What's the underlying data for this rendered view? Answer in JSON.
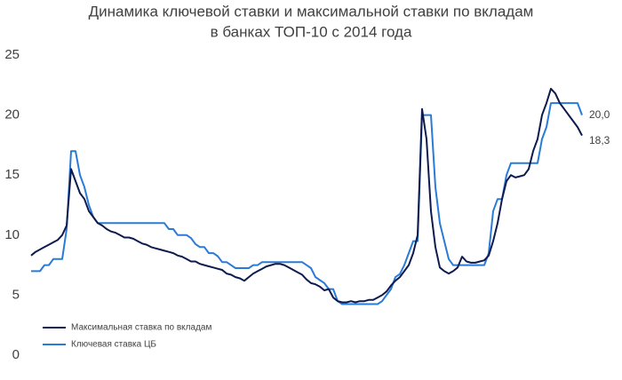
{
  "chart_data": {
    "type": "line",
    "title": [
      "Динамика ключевой ставки и максимальной ставки по вкладам",
      "в банках ТОП-10 с 2014 года"
    ],
    "ylim": [
      0,
      25
    ],
    "yticks": [
      0,
      5,
      10,
      15,
      20,
      25
    ],
    "grid": false,
    "legend": "lower left",
    "series": [
      {
        "name": "Максимальная ставка по вкладам",
        "color": "#0d1b4f",
        "end_label": "18,3",
        "values": [
          8.3,
          8.6,
          8.8,
          9,
          9.2,
          9.4,
          9.6,
          10,
          10.8,
          15.5,
          14.5,
          13.5,
          13,
          12,
          11.5,
          11,
          10.8,
          10.5,
          10.3,
          10.2,
          10,
          9.8,
          9.8,
          9.7,
          9.5,
          9.3,
          9.2,
          9,
          8.9,
          8.8,
          8.7,
          8.6,
          8.5,
          8.3,
          8.2,
          8,
          7.8,
          7.8,
          7.6,
          7.5,
          7.4,
          7.3,
          7.2,
          7.1,
          6.8,
          6.7,
          6.5,
          6.4,
          6.2,
          6.5,
          6.8,
          7,
          7.2,
          7.4,
          7.5,
          7.6,
          7.6,
          7.5,
          7.3,
          7.1,
          6.9,
          6.7,
          6.3,
          6,
          5.9,
          5.7,
          5.4,
          5.5,
          4.8,
          4.5,
          4.4,
          4.4,
          4.5,
          4.4,
          4.5,
          4.5,
          4.6,
          4.6,
          4.8,
          5,
          5.3,
          5.8,
          6.2,
          6.5,
          7,
          7.5,
          8.5,
          10,
          20.5,
          18,
          12,
          9,
          7.3,
          7,
          6.8,
          7,
          7.3,
          8.2,
          7.8,
          7.7,
          7.7,
          7.8,
          7.9,
          8.3,
          9.5,
          11,
          13,
          14.5,
          15,
          14.8,
          14.9,
          15,
          15.5,
          17,
          18,
          20,
          21,
          22.2,
          21.8,
          21,
          20.5,
          20,
          19.5,
          19,
          18.3
        ]
      },
      {
        "name": "Ключевая ставка ЦБ",
        "color": "#2a7ad8",
        "end_label": "20,0",
        "values": [
          7,
          7,
          7,
          7.5,
          7.5,
          8,
          8,
          8,
          10.5,
          17,
          17,
          15,
          14,
          12.5,
          11.5,
          11,
          11,
          11,
          11,
          11,
          11,
          11,
          11,
          11,
          11,
          11,
          11,
          11,
          11,
          11,
          11,
          10.5,
          10.5,
          10,
          10,
          10,
          9.75,
          9.25,
          9,
          9,
          8.5,
          8.5,
          8.25,
          7.75,
          7.75,
          7.5,
          7.25,
          7.25,
          7.25,
          7.25,
          7.5,
          7.5,
          7.75,
          7.75,
          7.75,
          7.75,
          7.75,
          7.75,
          7.75,
          7.75,
          7.75,
          7.75,
          7.5,
          7.25,
          6.5,
          6.25,
          6,
          5.5,
          5.5,
          4.5,
          4.25,
          4.25,
          4.25,
          4.25,
          4.25,
          4.25,
          4.25,
          4.25,
          4.25,
          4.5,
          5,
          5.5,
          6.5,
          6.75,
          7.5,
          8.5,
          9.5,
          9.5,
          20,
          20,
          20,
          14,
          11,
          9.5,
          8,
          7.5,
          7.5,
          7.5,
          7.5,
          7.5,
          7.5,
          7.5,
          7.5,
          8.5,
          12,
          13,
          13,
          15,
          16,
          16,
          16,
          16,
          16,
          16,
          16,
          18,
          19,
          21,
          21,
          21,
          21,
          21,
          21,
          21,
          20
        ]
      }
    ]
  }
}
